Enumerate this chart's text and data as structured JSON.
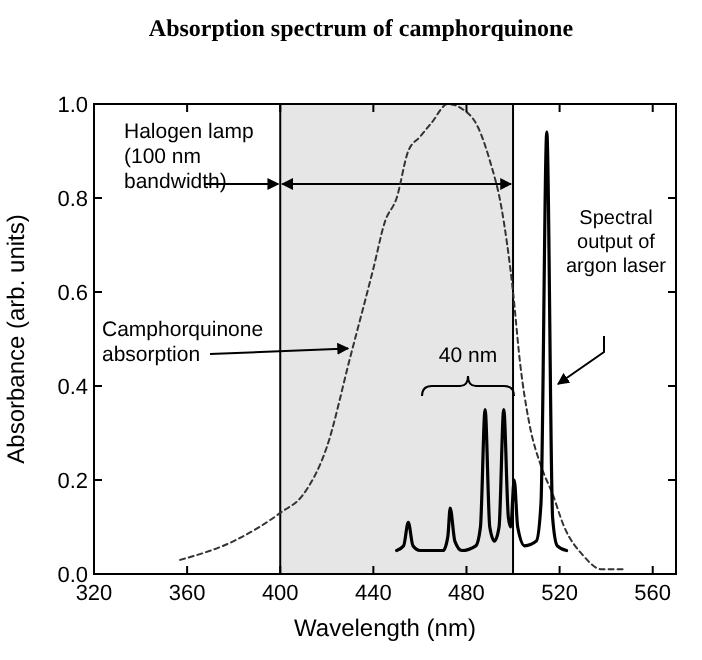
{
  "chart_data": {
    "type": "line",
    "title": "Absorption spectrum of camphorquinone",
    "xlabel": "Wavelength (nm)",
    "ylabel": "Absorbance (arb. units)",
    "xlim": [
      320,
      570
    ],
    "xticks": [
      320,
      360,
      400,
      440,
      480,
      520,
      560
    ],
    "ylim": [
      0,
      1.0
    ],
    "yticks": [
      {
        "value": 0,
        "label": "0.0"
      },
      0.2,
      0.4,
      0.6,
      0.8,
      {
        "value": 1,
        "label": "1.0"
      }
    ],
    "bands": [
      {
        "axis": "x",
        "from": 400,
        "to": 500,
        "label": "Halogen lamp\n(100 nm\nbandwidth)",
        "color": "#e6e6e6"
      }
    ],
    "series": [
      {
        "color": "#333333",
        "line_style": "dashed",
        "x": [
          357,
          380,
          400,
          410,
          420,
          430,
          440,
          445,
          450,
          455,
          460,
          465,
          472,
          478,
          485,
          490,
          495,
          500,
          503,
          507,
          512,
          517,
          522,
          530,
          538,
          548
        ],
        "values": [
          0.03,
          0.07,
          0.13,
          0.17,
          0.27,
          0.46,
          0.65,
          0.75,
          0.8,
          0.9,
          0.93,
          0.96,
          1.0,
          0.99,
          0.95,
          0.88,
          0.78,
          0.6,
          0.45,
          0.32,
          0.23,
          0.17,
          0.1,
          0.04,
          0.01,
          0.01
        ]
      },
      {
        "color": "#000000",
        "line_style": "solid",
        "x": [
          450,
          453,
          455,
          457,
          460,
          470,
          472,
          473,
          475,
          478,
          484,
          486,
          488,
          490,
          492,
          494,
          496,
          498,
          499,
          500.5,
          502,
          505,
          510,
          512,
          514.5,
          517,
          519,
          523
        ],
        "values": [
          0.05,
          0.06,
          0.11,
          0.06,
          0.05,
          0.05,
          0.08,
          0.14,
          0.07,
          0.05,
          0.06,
          0.1,
          0.35,
          0.1,
          0.07,
          0.1,
          0.35,
          0.12,
          0.1,
          0.2,
          0.1,
          0.06,
          0.07,
          0.15,
          0.94,
          0.12,
          0.06,
          0.05
        ]
      }
    ],
    "annotations": [
      {
        "text": "Camphorquinone\nabsorption",
        "x": 430,
        "y": 0.48
      },
      "40 nm",
      "Spectral\noutput of\nargon laser"
    ]
  }
}
